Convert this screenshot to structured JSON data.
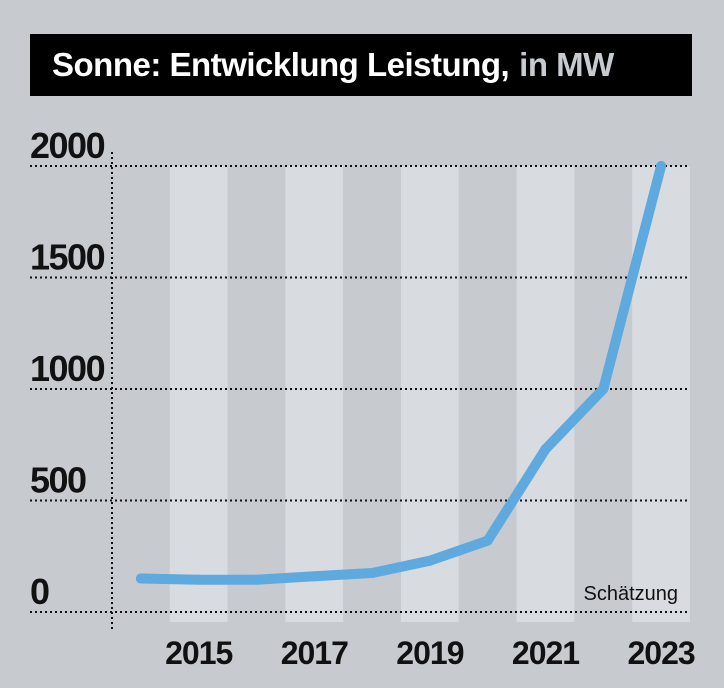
{
  "chart_data": {
    "type": "line",
    "title": "Sonne: Entwicklung Leistung,",
    "title_unit": "in MW",
    "x": [
      2014,
      2015,
      2016,
      2017,
      2018,
      2019,
      2020,
      2021,
      2022,
      2023
    ],
    "x_tick_labels": [
      "2015",
      "2017",
      "2019",
      "2021",
      "2023"
    ],
    "x_tick_values": [
      2015,
      2017,
      2019,
      2021,
      2023
    ],
    "series": [
      {
        "values": [
          150,
          145,
          145,
          160,
          175,
          230,
          320,
          730,
          1000,
          2000
        ],
        "color": "#5ea9dd"
      }
    ],
    "y_ticks": [
      0,
      500,
      1000,
      1500,
      2000
    ],
    "y_tick_labels": [
      "0",
      "500",
      "1000",
      "1500",
      "2000"
    ],
    "ylim": [
      0,
      2000
    ],
    "xlim": [
      2013.5,
      2023.5
    ],
    "grid": true,
    "annotation": "Schätzung"
  },
  "colors": {
    "background": "#c7cbd0",
    "band_light": "#d8dce1",
    "band_dark": "#c7cbd0",
    "line": "#5ea9dd",
    "title_bg": "#000000",
    "title_text": "#ffffff",
    "title_unit": "#c7cbd0"
  }
}
